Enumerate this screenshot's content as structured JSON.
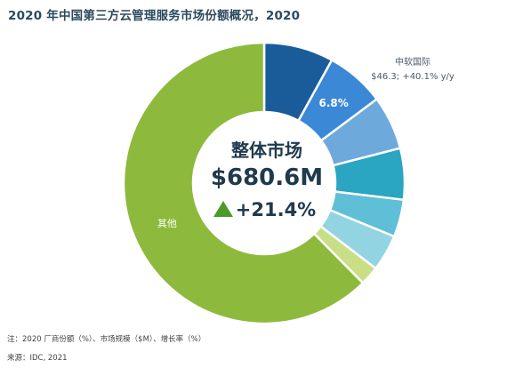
{
  "title": "2020 年中国第三方云管理服务市场份额概况，2020",
  "center": {
    "label": "整体市场",
    "total": "$680.6M",
    "growth": "+21.4%"
  },
  "callout": {
    "name": "中软国际",
    "detail": "$46.3; +40.1% y/y"
  },
  "footnotes": {
    "note": "注：2020 厂商份额（%）、市场规模（$M）、增长率（%）",
    "source": "来源：IDC, 2021"
  },
  "colors": {
    "growth_arrow": "#4c9a2a",
    "other": "#8dba3c"
  },
  "chart_data": {
    "type": "pie",
    "style": "donut",
    "series": [
      {
        "values": [
          8.0,
          6.8,
          6.2,
          5.9,
          4.3,
          4.2,
          2.2,
          62.4
        ],
        "labels": [
          "",
          "6.8%",
          "",
          "",
          "",
          "",
          "",
          "其他"
        ],
        "colors": [
          "#1a5c9a",
          "#3a88d6",
          "#6ea9dc",
          "#2aa5c2",
          "#5fbfd6",
          "#93d4e2",
          "#c8df86",
          "#8dba3c"
        ]
      }
    ]
  }
}
